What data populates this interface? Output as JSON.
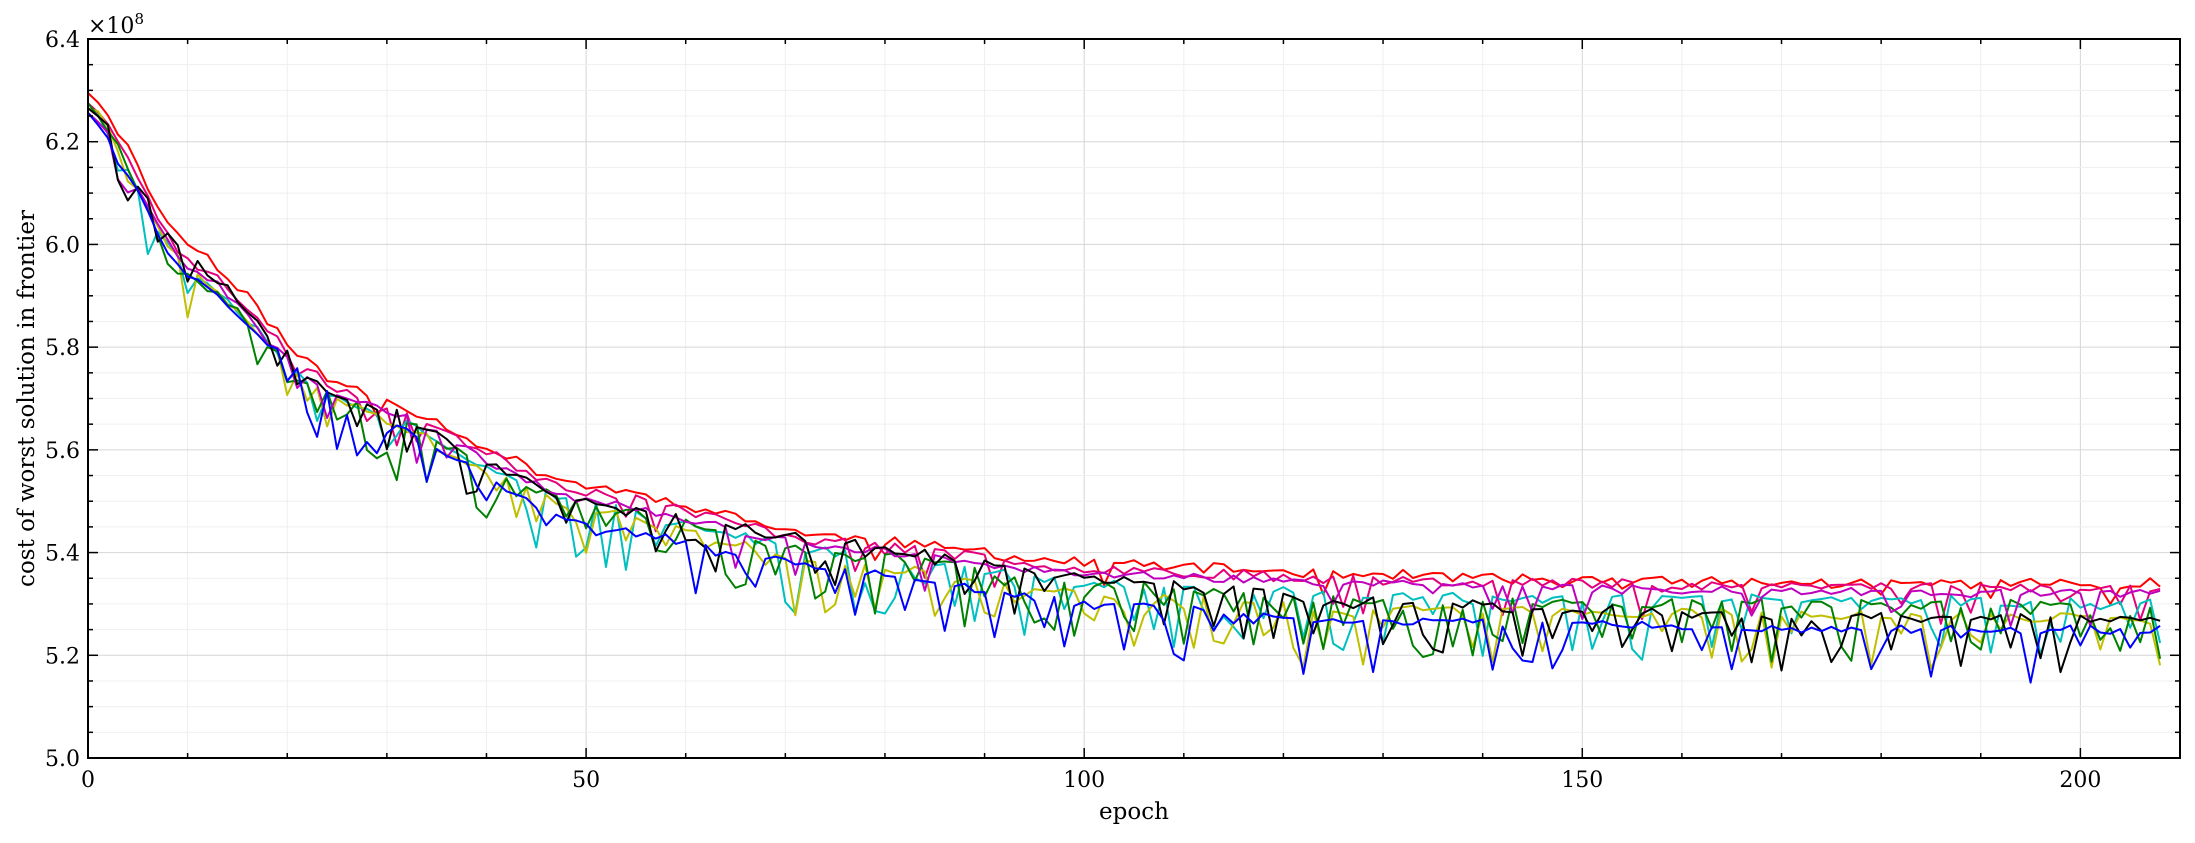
{
  "chart_data": {
    "type": "line",
    "title": "",
    "xlabel": "epoch",
    "ylabel": "cost of worst solution in frontier",
    "y_multiplier_label": "×10",
    "y_multiplier_exponent": "8",
    "xlim": [
      0,
      210
    ],
    "ylim": [
      5.0,
      6.4
    ],
    "y_scale": 100000000,
    "x_ticks": [
      0,
      50,
      100,
      150,
      200
    ],
    "x_tick_labels": [
      "0",
      "50",
      "100",
      "150",
      "200"
    ],
    "y_ticks": [
      5.0,
      5.2,
      5.4,
      5.6,
      5.8,
      6.0,
      6.2,
      6.4
    ],
    "y_tick_labels": [
      "5.0",
      "5.2",
      "5.4",
      "5.6",
      "5.8",
      "6.0",
      "6.2",
      "6.4"
    ],
    "grid": true,
    "minor_grid": true,
    "legend": "none",
    "epochs": 209,
    "series": [
      {
        "color": "#ff0000",
        "anchors": [
          [
            0,
            6.3
          ],
          [
            10,
            6.0
          ],
          [
            25,
            5.73
          ],
          [
            50,
            5.53
          ],
          [
            75,
            5.43
          ],
          [
            100,
            5.38
          ],
          [
            125,
            5.36
          ],
          [
            150,
            5.345
          ],
          [
            175,
            5.34
          ],
          [
            208,
            5.34
          ]
        ],
        "noise": 0.01,
        "dips": 0.08,
        "dip_size": 0.05,
        "seed": 11
      },
      {
        "color": "#e4007c",
        "anchors": [
          [
            0,
            6.28
          ],
          [
            10,
            5.97
          ],
          [
            25,
            5.72
          ],
          [
            50,
            5.52
          ],
          [
            75,
            5.42
          ],
          [
            100,
            5.37
          ],
          [
            125,
            5.35
          ],
          [
            150,
            5.34
          ],
          [
            175,
            5.335
          ],
          [
            208,
            5.33
          ]
        ],
        "noise": 0.01,
        "dips": 0.12,
        "dip_size": 0.07,
        "seed": 23
      },
      {
        "color": "#00bfbf",
        "anchors": [
          [
            0,
            6.27
          ],
          [
            10,
            5.95
          ],
          [
            25,
            5.7
          ],
          [
            50,
            5.49
          ],
          [
            75,
            5.4
          ],
          [
            100,
            5.34
          ],
          [
            125,
            5.32
          ],
          [
            150,
            5.31
          ],
          [
            175,
            5.31
          ],
          [
            208,
            5.3
          ]
        ],
        "noise": 0.01,
        "dips": 0.35,
        "dip_size": 0.12,
        "seed": 37
      },
      {
        "color": "#bfbf00",
        "anchors": [
          [
            0,
            6.27
          ],
          [
            10,
            5.95
          ],
          [
            25,
            5.69
          ],
          [
            50,
            5.48
          ],
          [
            75,
            5.38
          ],
          [
            100,
            5.32
          ],
          [
            125,
            5.29
          ],
          [
            150,
            5.285
          ],
          [
            175,
            5.28
          ],
          [
            208,
            5.27
          ]
        ],
        "noise": 0.01,
        "dips": 0.35,
        "dip_size": 0.11,
        "seed": 41
      },
      {
        "color": "#008000",
        "anchors": [
          [
            0,
            6.28
          ],
          [
            10,
            5.94
          ],
          [
            25,
            5.7
          ],
          [
            50,
            5.49
          ],
          [
            75,
            5.4
          ],
          [
            100,
            5.34
          ],
          [
            125,
            5.31
          ],
          [
            150,
            5.3
          ],
          [
            175,
            5.3
          ],
          [
            208,
            5.3
          ]
        ],
        "noise": 0.01,
        "dips": 0.45,
        "dip_size": 0.12,
        "seed": 53
      },
      {
        "color": "#bf00bf",
        "anchors": [
          [
            0,
            6.26
          ],
          [
            10,
            5.96
          ],
          [
            25,
            5.71
          ],
          [
            50,
            5.5
          ],
          [
            75,
            5.41
          ],
          [
            100,
            5.36
          ],
          [
            125,
            5.34
          ],
          [
            150,
            5.33
          ],
          [
            175,
            5.325
          ],
          [
            208,
            5.32
          ]
        ],
        "noise": 0.008,
        "dips": 0.15,
        "dip_size": 0.07,
        "seed": 67
      },
      {
        "color": "#000000",
        "anchors": [
          [
            0,
            6.27
          ],
          [
            10,
            5.97
          ],
          [
            25,
            5.71
          ],
          [
            50,
            5.5
          ],
          [
            75,
            5.42
          ],
          [
            100,
            5.35
          ],
          [
            125,
            5.31
          ],
          [
            150,
            5.29
          ],
          [
            175,
            5.275
          ],
          [
            208,
            5.27
          ]
        ],
        "noise": 0.01,
        "dips": 0.32,
        "dip_size": 0.1,
        "seed": 79
      },
      {
        "color": "#0000ff",
        "anchors": [
          [
            0,
            6.26
          ],
          [
            10,
            5.94
          ],
          [
            25,
            5.7
          ],
          [
            50,
            5.45
          ],
          [
            75,
            5.37
          ],
          [
            100,
            5.3
          ],
          [
            125,
            5.27
          ],
          [
            150,
            5.26
          ],
          [
            175,
            5.25
          ],
          [
            208,
            5.25
          ]
        ],
        "noise": 0.008,
        "dips": 0.28,
        "dip_size": 0.11,
        "seed": 97
      }
    ]
  }
}
